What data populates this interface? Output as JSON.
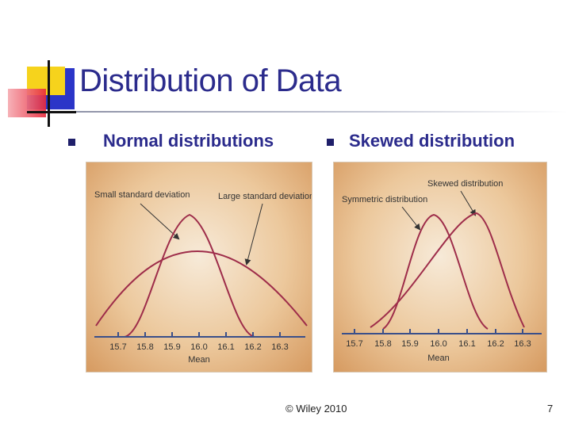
{
  "slide": {
    "title": "Distribution of Data",
    "footer": "© Wiley 2010",
    "page_number": "7"
  },
  "bullets": [
    {
      "label": "Normal distributions"
    },
    {
      "label": "Skewed distribution"
    }
  ],
  "figures": {
    "left": {
      "annotations": [
        "Small standard deviation",
        "Large standard deviation"
      ],
      "ticks": [
        "15.7",
        "15.8",
        "15.9",
        "16.0",
        "16.1",
        "16.2",
        "16.3"
      ],
      "axis_label": "Mean"
    },
    "right": {
      "annotations": [
        "Skewed distribution",
        "Symmetric distribution"
      ],
      "ticks": [
        "15.7",
        "15.8",
        "15.9",
        "16.0",
        "16.1",
        "16.2",
        "16.3"
      ],
      "axis_label": "Mean"
    }
  },
  "colors": {
    "title": "#2b2b8c",
    "curve": "#9e2d4a",
    "axis": "#3a4f8a",
    "logo_yellow": "#f6d31c",
    "logo_blue": "#2b35c8",
    "logo_red": "#e8283a"
  }
}
